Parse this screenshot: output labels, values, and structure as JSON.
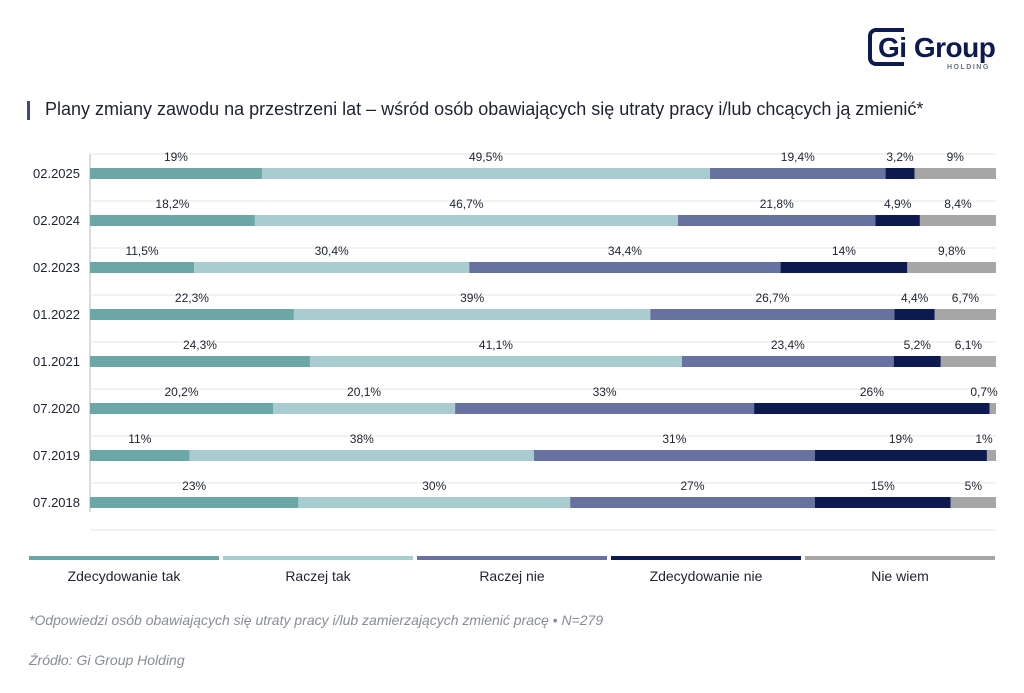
{
  "logo": {
    "name": "Gi Group",
    "sub": "HOLDING"
  },
  "title": "Plany zmiany zawodu na przestrzeni lat – wśród osób obawiających się utraty pracy i/lub chcących ją zmienić*",
  "colors": [
    "#6ba7a7",
    "#a8cccf",
    "#6872a0",
    "#0c1a4f",
    "#a6a6a6"
  ],
  "chart_data": {
    "type": "bar",
    "orientation": "horizontal",
    "stacked": true,
    "title": "Plany zmiany zawodu na przestrzeni lat – wśród osób obawiających się utraty pracy i/lub chcących ją zmienić*",
    "categories": [
      "02.2025",
      "02.2024",
      "02.2023",
      "01.2022",
      "01.2021",
      "07.2020",
      "07.2019",
      "07.2018"
    ],
    "legend_position": "bottom",
    "series": [
      {
        "name": "Zdecydowanie tak",
        "color": "#6ba7a7",
        "values": [
          19,
          18.2,
          11.5,
          22.3,
          24.3,
          20.2,
          11,
          23
        ],
        "labels": [
          "19%",
          "18,2%",
          "11,5%",
          "22,3%",
          "24,3%",
          "20,2%",
          "11%",
          "23%"
        ]
      },
      {
        "name": "Raczej tak",
        "color": "#a8cccf",
        "values": [
          49.5,
          46.7,
          30.4,
          39,
          41.1,
          20.1,
          38,
          30
        ],
        "labels": [
          "49,5%",
          "46,7%",
          "30,4%",
          "39%",
          "41,1%",
          "20,1%",
          "38%",
          "30%"
        ]
      },
      {
        "name": "Raczej nie",
        "color": "#6872a0",
        "values": [
          19.4,
          21.8,
          34.4,
          26.7,
          23.4,
          33,
          31,
          27
        ],
        "labels": [
          "19,4%",
          "21,8%",
          "34,4%",
          "26,7%",
          "23,4%",
          "33%",
          "31%",
          "27%"
        ]
      },
      {
        "name": "Zdecydowanie nie",
        "color": "#0c1a4f",
        "values": [
          3.2,
          4.9,
          14,
          4.4,
          5.2,
          26,
          19,
          15
        ],
        "labels": [
          "3,2%",
          "4,9%",
          "14%",
          "4,4%",
          "5,2%",
          "26%",
          "19%",
          "15%"
        ]
      },
      {
        "name": "Nie wiem",
        "color": "#a6a6a6",
        "values": [
          9,
          8.4,
          9.8,
          6.7,
          6.1,
          0.7,
          1,
          5
        ],
        "labels": [
          "9%",
          "8,4%",
          "9,8%",
          "6,7%",
          "6,1%",
          "0,7%",
          "1%",
          "5%"
        ]
      }
    ]
  },
  "legend": [
    "Zdecydowanie tak",
    "Raczej tak",
    "Raczej nie",
    "Zdecydowanie nie",
    "Nie wiem"
  ],
  "footnote": "*Odpowiedzi osób obawiających się utraty pracy i/lub zamierzających zmienić pracę • N=279",
  "source": "Źródło: Gi Group Holding"
}
